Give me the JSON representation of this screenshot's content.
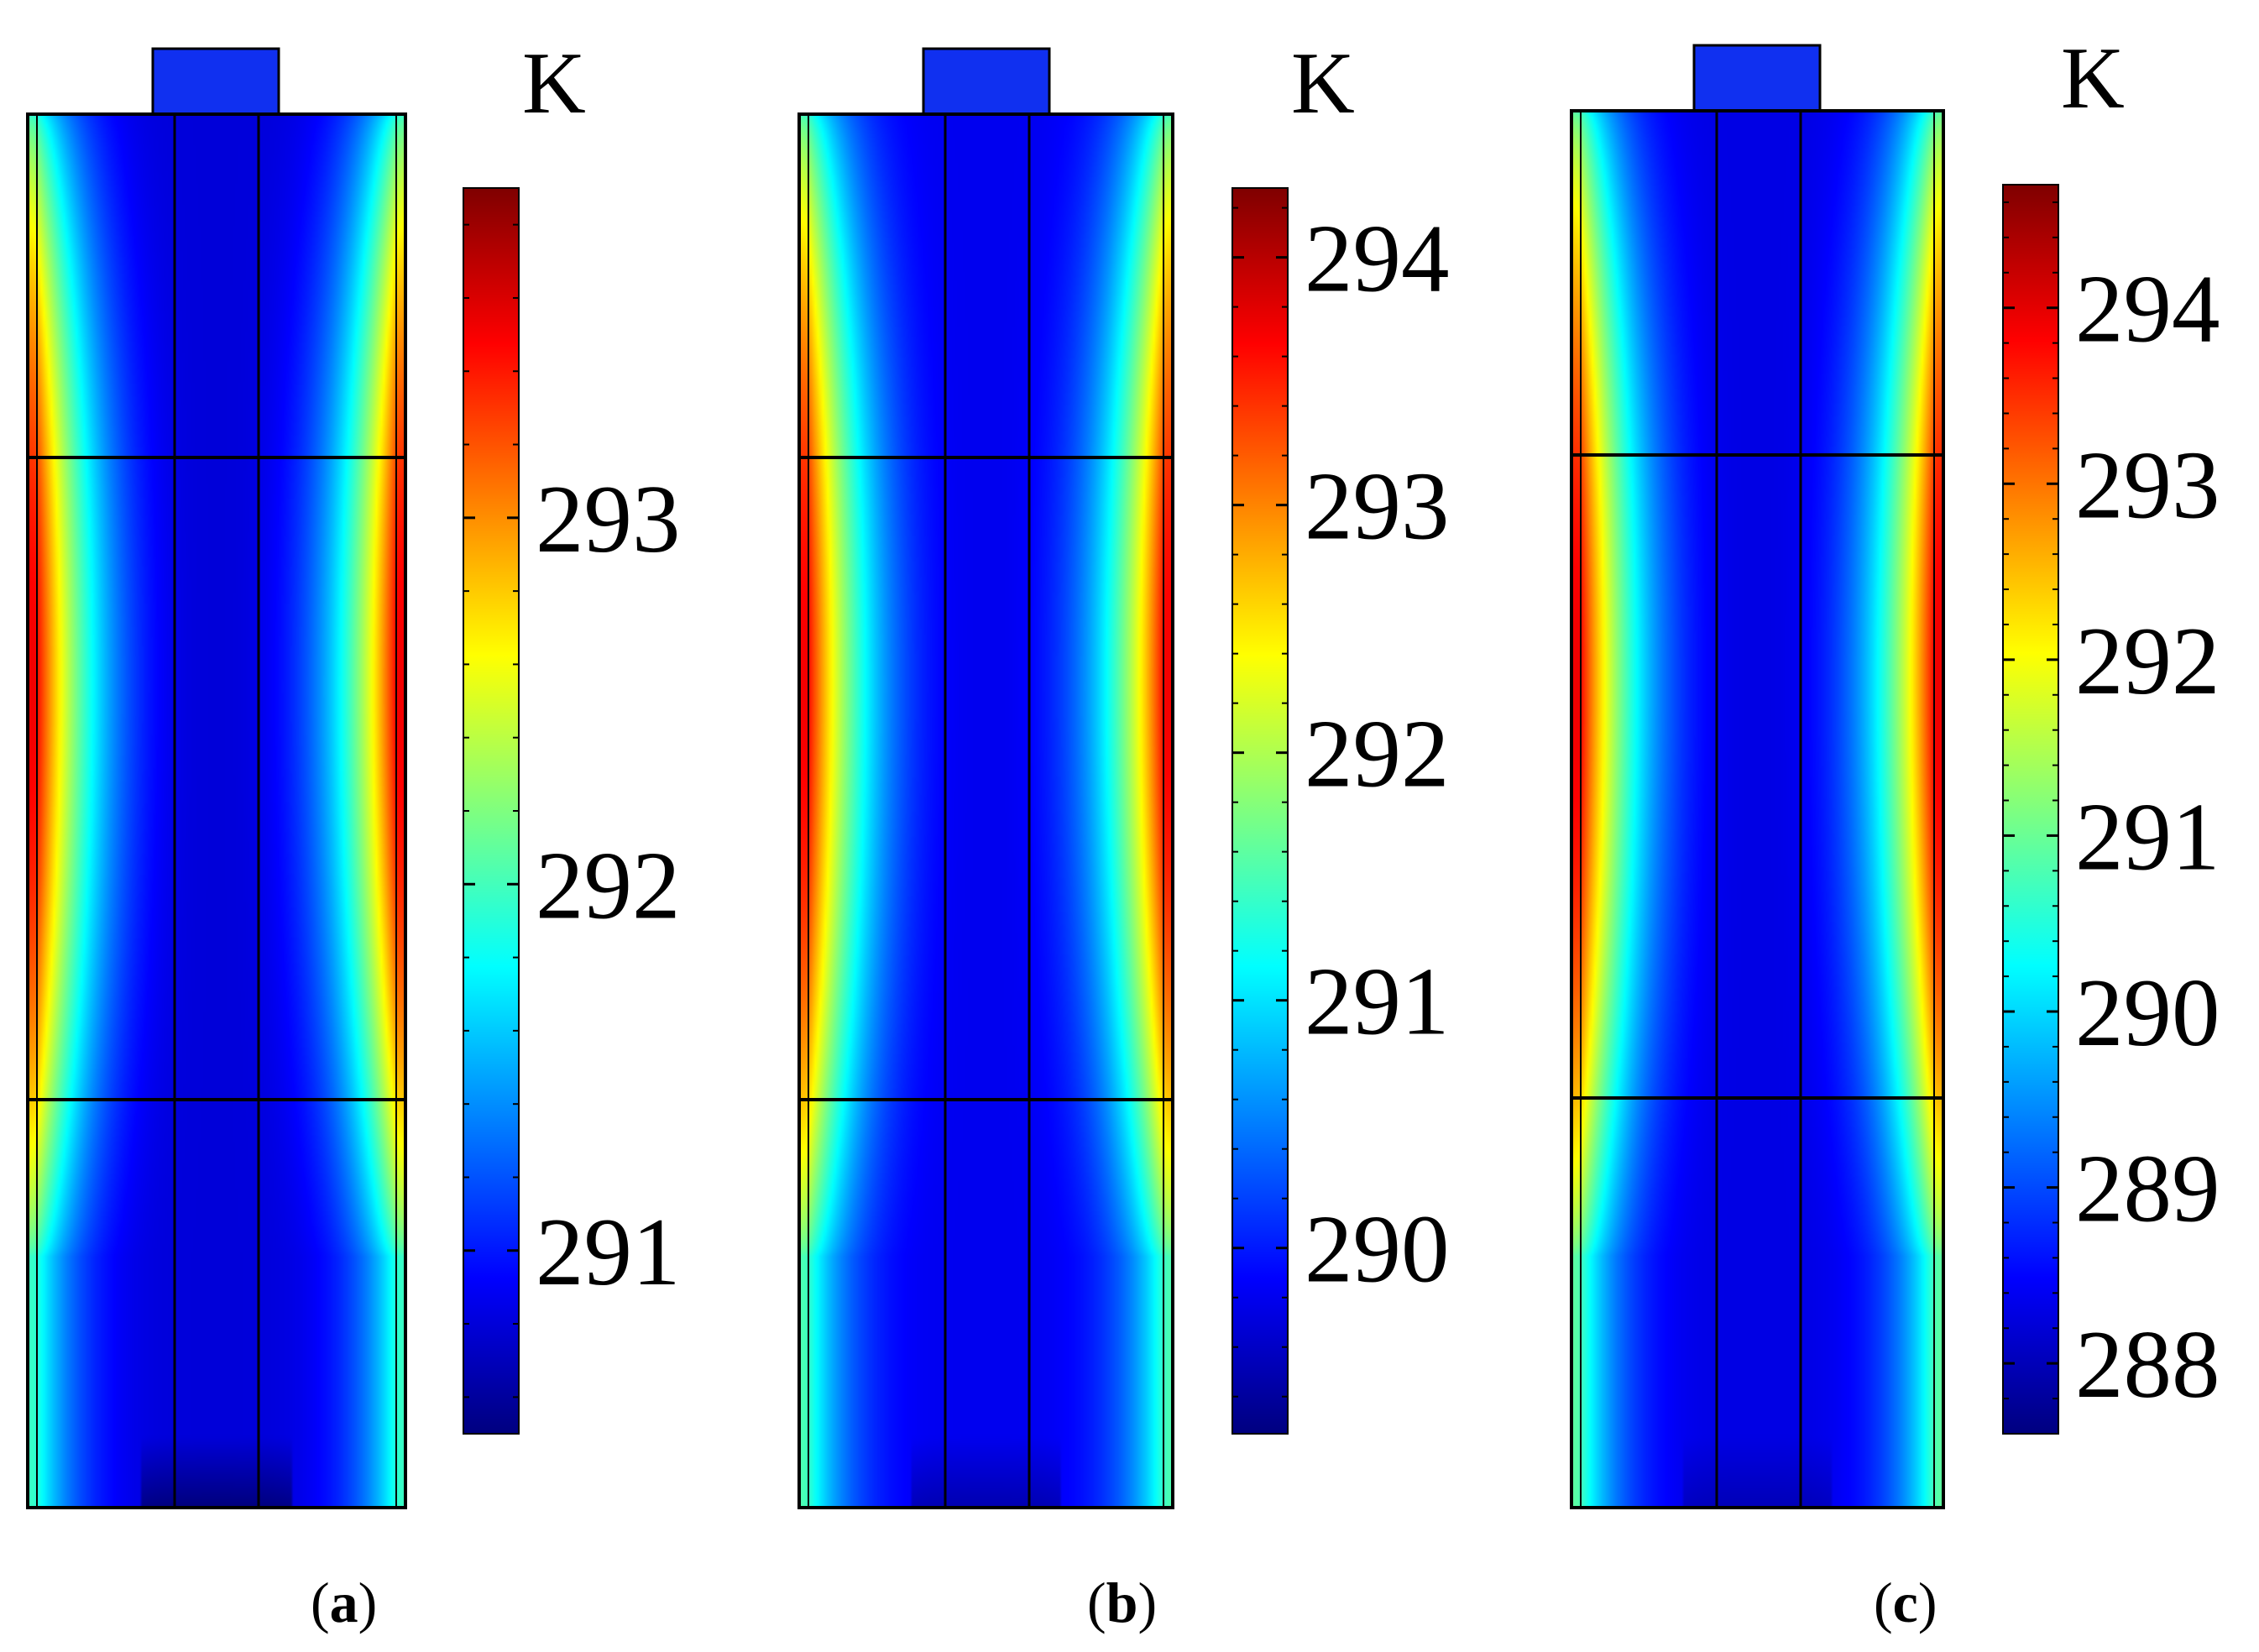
{
  "colors": {
    "outline": "#000000",
    "terminal": "#1030f0",
    "jet_stops": [
      "#00007f",
      "#0000ff",
      "#007fff",
      "#00ffff",
      "#7fff7f",
      "#ffff00",
      "#ff7f00",
      "#ff0000",
      "#7f0000"
    ]
  },
  "panels": [
    {
      "id": "a",
      "caption": "a",
      "unit": "K",
      "colorbar": {
        "min": 290.5,
        "max": 293.9,
        "ticks": [
          291,
          292,
          293
        ],
        "minor_step": 0.2
      },
      "field": {
        "core_K": 290.8,
        "edge_K": 293.8,
        "bottom_edge_K": 292.1
      }
    },
    {
      "id": "b",
      "caption": "b",
      "unit": "K",
      "colorbar": {
        "min": 289.25,
        "max": 294.28,
        "ticks": [
          290,
          291,
          292,
          293,
          294
        ],
        "minor_step": 0.2
      },
      "field": {
        "core_K": 289.8,
        "edge_K": 294.1,
        "bottom_edge_K": 291.7
      }
    },
    {
      "id": "c",
      "caption": "c",
      "unit": "K",
      "colorbar": {
        "min": 287.6,
        "max": 294.7,
        "ticks": [
          288,
          289,
          290,
          291,
          292,
          293,
          294
        ],
        "minor_step": 0.2
      },
      "field": {
        "core_K": 288.3,
        "edge_K": 294.5,
        "bottom_edge_K": 291.2
      }
    }
  ]
}
